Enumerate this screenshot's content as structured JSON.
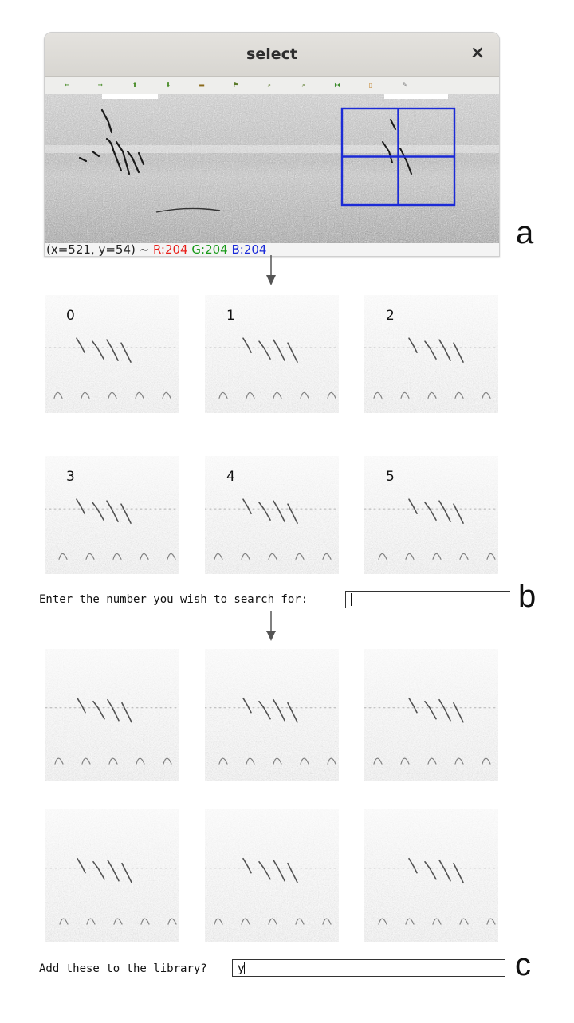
{
  "window": {
    "title": "select",
    "close_glyph": "×",
    "toolbar": [
      {
        "icon": "arrow-left-icon",
        "glyph": "⬅",
        "color": "#4a8d2a"
      },
      {
        "icon": "arrow-right-icon",
        "glyph": "➡",
        "color": "#4a8d2a"
      },
      {
        "icon": "arrow-up-icon",
        "glyph": "⬆",
        "color": "#4a8d2a"
      },
      {
        "icon": "arrow-down-icon",
        "glyph": "⬇",
        "color": "#4a8d2a"
      },
      {
        "icon": "save-icon",
        "glyph": "▬",
        "color": "#8a6a1a"
      },
      {
        "icon": "flag-icon",
        "glyph": "⚑",
        "color": "#5a7a2a"
      },
      {
        "icon": "zoom-in-icon",
        "glyph": "⌕",
        "color": "#5a7a2a"
      },
      {
        "icon": "zoom-out-icon",
        "glyph": "⌕",
        "color": "#5a7a2a"
      },
      {
        "icon": "fit-icon",
        "glyph": "⧓",
        "color": "#3a8a2a"
      },
      {
        "icon": "page-icon",
        "glyph": "▯",
        "color": "#c07a1a"
      },
      {
        "icon": "pen-icon",
        "glyph": "✎",
        "color": "#777777"
      }
    ],
    "status": {
      "coords": "(x=521, y=54) ~ ",
      "r": "R:204",
      "g": "G:204",
      "b": "B:204",
      "r_color": "#e8201a",
      "g_color": "#1a9a1a",
      "b_color": "#1a2ad8"
    },
    "selection_color": "#1c2bd6"
  },
  "labels": {
    "a": "a",
    "b": "b",
    "c": "c"
  },
  "candidates": [
    "0",
    "1",
    "2",
    "3",
    "4",
    "5"
  ],
  "prompt_search": {
    "text": "Enter the number you wish to search for:",
    "value": ""
  },
  "prompt_library": {
    "text": "Add these to the library?",
    "value": "y"
  }
}
